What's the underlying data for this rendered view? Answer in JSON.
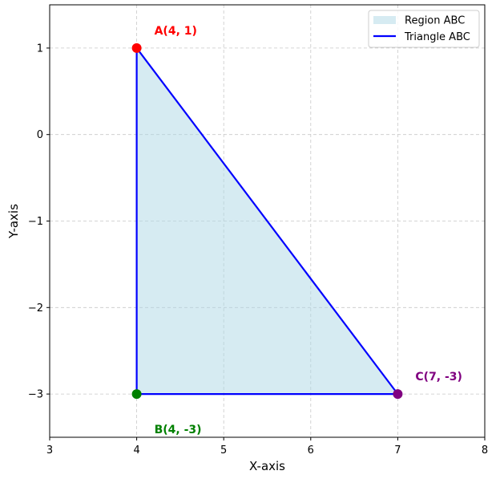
{
  "chart_data": {
    "type": "scatter",
    "title": "",
    "xlabel": "X-axis",
    "ylabel": "Y-axis",
    "xlim": [
      3,
      8
    ],
    "ylim": [
      -3.5,
      1.5
    ],
    "xticks": [
      3,
      4,
      5,
      6,
      7,
      8
    ],
    "yticks": [
      -3,
      -2,
      -1,
      0,
      1
    ],
    "xtick_labels": [
      "3",
      "4",
      "5",
      "6",
      "7",
      "8"
    ],
    "ytick_labels": [
      "−3",
      "−2",
      "−1",
      "0",
      "1"
    ],
    "grid": true,
    "legend_position": "top-right",
    "points": [
      {
        "name": "A",
        "x": 4,
        "y": 1,
        "label": "A(4, 1)",
        "color": "#ff0000"
      },
      {
        "name": "B",
        "x": 4,
        "y": -3,
        "label": "B(4, -3)",
        "color": "#008000"
      },
      {
        "name": "C",
        "x": 7,
        "y": -3,
        "label": "C(7, -3)",
        "color": "#800080"
      }
    ],
    "series": [
      {
        "name": "Region ABC",
        "kind": "fill",
        "color": "#add8e6"
      },
      {
        "name": "Triangle ABC",
        "kind": "line",
        "color": "#0000ff"
      }
    ]
  }
}
